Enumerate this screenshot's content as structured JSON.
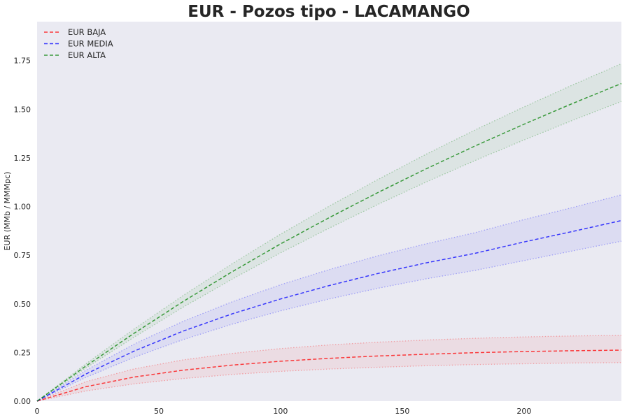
{
  "chart_data": {
    "type": "line",
    "title": "EUR - Pozos tipo - LACAMANGO",
    "xlabel": "",
    "ylabel": "EUR (MMb / MMMpc)",
    "xlim": [
      0,
      240
    ],
    "ylim": [
      0,
      1.95
    ],
    "x_ticks": [
      0,
      50,
      100,
      150,
      200
    ],
    "x_tick_labels": [
      "0",
      "50",
      "100",
      "150",
      "200"
    ],
    "y_ticks": [
      0,
      0.25,
      0.5,
      0.75,
      1.0,
      1.25,
      1.5,
      1.75
    ],
    "y_tick_labels": [
      "0.00",
      "0.25",
      "0.50",
      "0.75",
      "1.00",
      "1.25",
      "1.50",
      "1.75"
    ],
    "grid": false,
    "legend": "top-left",
    "background": "#eaeaf2",
    "x": [
      0,
      20,
      40,
      60,
      80,
      100,
      120,
      140,
      160,
      180,
      200,
      220,
      240
    ],
    "series": [
      {
        "name": "EUR BAJA",
        "color": "#ff0000",
        "values": [
          0.0,
          0.074,
          0.124,
          0.159,
          0.185,
          0.205,
          0.22,
          0.232,
          0.241,
          0.249,
          0.255,
          0.259,
          0.262
        ],
        "upper": [
          0.0,
          0.1,
          0.166,
          0.212,
          0.245,
          0.27,
          0.289,
          0.303,
          0.314,
          0.323,
          0.33,
          0.335,
          0.338
        ],
        "lower": [
          0.0,
          0.052,
          0.089,
          0.116,
          0.137,
          0.153,
          0.165,
          0.174,
          0.182,
          0.188,
          0.192,
          0.196,
          0.198
        ]
      },
      {
        "name": "EUR MEDIA",
        "color": "#0000ff",
        "values": [
          0.0,
          0.139,
          0.258,
          0.36,
          0.448,
          0.525,
          0.594,
          0.656,
          0.711,
          0.76,
          0.818,
          0.872,
          0.928
        ],
        "upper": [
          0.0,
          0.158,
          0.294,
          0.41,
          0.51,
          0.598,
          0.676,
          0.747,
          0.809,
          0.866,
          0.933,
          0.995,
          1.06
        ],
        "lower": [
          0.0,
          0.122,
          0.226,
          0.316,
          0.395,
          0.464,
          0.525,
          0.58,
          0.629,
          0.672,
          0.722,
          0.772,
          0.822
        ]
      },
      {
        "name": "EUR ALTA",
        "color": "#008000",
        "values": [
          0.0,
          0.18,
          0.35,
          0.512,
          0.664,
          0.808,
          0.943,
          1.072,
          1.195,
          1.312,
          1.423,
          1.53,
          1.632
        ],
        "upper": [
          0.0,
          0.191,
          0.372,
          0.543,
          0.705,
          0.858,
          1.002,
          1.139,
          1.27,
          1.394,
          1.512,
          1.625,
          1.734
        ],
        "lower": [
          0.0,
          0.17,
          0.33,
          0.483,
          0.626,
          0.762,
          0.889,
          1.011,
          1.127,
          1.237,
          1.342,
          1.443,
          1.54
        ]
      }
    ]
  }
}
